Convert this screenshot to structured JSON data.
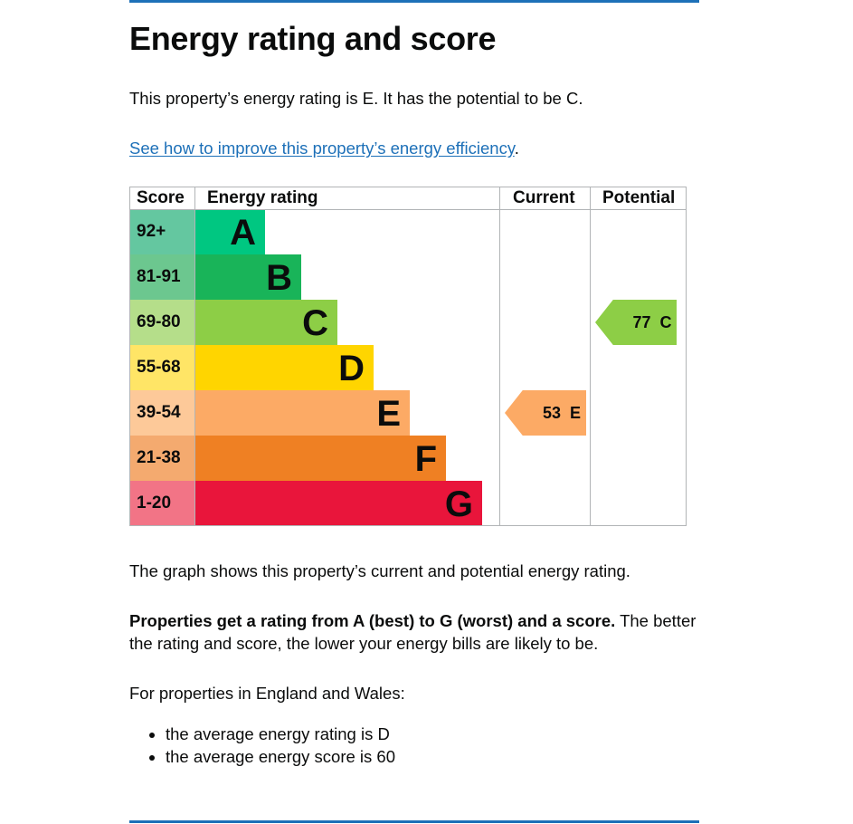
{
  "page": {
    "title": "Energy rating and score",
    "intro": "This property’s energy rating is E. It has the potential to be C.",
    "link_text": "See how to improve this property’s energy efficiency",
    "link_suffix": ".",
    "graph_text": "The graph shows this property’s current and potential energy rating.",
    "props_bold": "Properties get a rating from A (best) to G (worst) and a score.",
    "props_rest": " The better the rating and score, the lower your energy bills are likely to be.",
    "england_text": "For properties in England and Wales:",
    "averages": [
      "the average energy rating is D",
      "the average energy score is 60"
    ]
  },
  "chart_data": {
    "type": "table",
    "headers": {
      "score": "Score",
      "rating": "Energy rating",
      "current": "Current",
      "potential": "Potential"
    },
    "bands": [
      {
        "letter": "A",
        "range": "92+",
        "color": "#00c781",
        "score_color": "#64c7a0"
      },
      {
        "letter": "B",
        "range": "81-91",
        "color": "#19b459",
        "score_color": "#6cc78f"
      },
      {
        "letter": "C",
        "range": "69-80",
        "color": "#8dce46",
        "score_color": "#b5de8a"
      },
      {
        "letter": "D",
        "range": "55-68",
        "color": "#ffd500",
        "score_color": "#ffe566"
      },
      {
        "letter": "E",
        "range": "39-54",
        "color": "#fcaa65",
        "score_color": "#fdc999"
      },
      {
        "letter": "F",
        "range": "21-38",
        "color": "#ef8023",
        "score_color": "#f4aa6f"
      },
      {
        "letter": "G",
        "range": "1-20",
        "color": "#e9153b",
        "score_color": "#f27486"
      }
    ],
    "current": {
      "score": "53",
      "letter": "E",
      "color": "#fcaa65"
    },
    "potential": {
      "score": "77",
      "letter": "C",
      "color": "#8dce46"
    }
  }
}
